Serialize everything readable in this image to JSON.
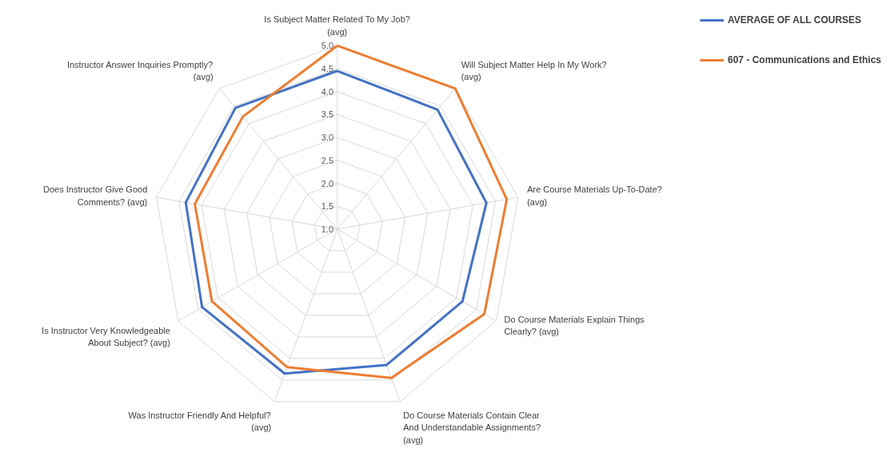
{
  "chart_data": {
    "type": "radar",
    "categories": [
      "Is Subject Matter Related To My Job?\n(avg)",
      "Will Subject Matter Help In My Work?\n(avg)",
      "Are Course Materials Up-To-Date?\n(avg)",
      "Do Course Materials Explain Things\nClearly? (avg)",
      "Do Course Materials Contain Clear\nAnd Understandable Assignments?\n(avg)",
      "Was Instructor Friendly And Helpful?\n(avg)",
      "Is Instructor Very Knowledgeable\nAbout Subject? (avg)",
      "Does Instructor Give Good\nComments? (avg)",
      "Instructor Answer Inquiries Promptly?\n(avg)"
    ],
    "series": [
      {
        "name": "AVERAGE OF ALL COURSES",
        "color": "#4472c4",
        "values": [
          4.45,
          4.4,
          4.3,
          4.15,
          4.15,
          4.35,
          4.4,
          4.35,
          4.45
        ]
      },
      {
        "name": "607 - Communications and Ethics",
        "color": "#ed7d31",
        "values": [
          5.0,
          5.0,
          4.75,
          4.7,
          4.45,
          4.2,
          4.15,
          4.15,
          4.2
        ]
      }
    ],
    "ylim": [
      1.0,
      5.0
    ],
    "yticks": [
      {
        "value": 1,
        "label": "1.0"
      },
      1.5,
      {
        "value": 2,
        "label": "2.0"
      },
      2.5,
      {
        "value": 3,
        "label": "3.0"
      },
      3.5,
      {
        "value": 4,
        "label": "4.0"
      },
      4.5,
      {
        "value": 5,
        "label": "5.0"
      }
    ],
    "legend": "right",
    "grid": true,
    "marker": "none",
    "line_style": "solid"
  }
}
